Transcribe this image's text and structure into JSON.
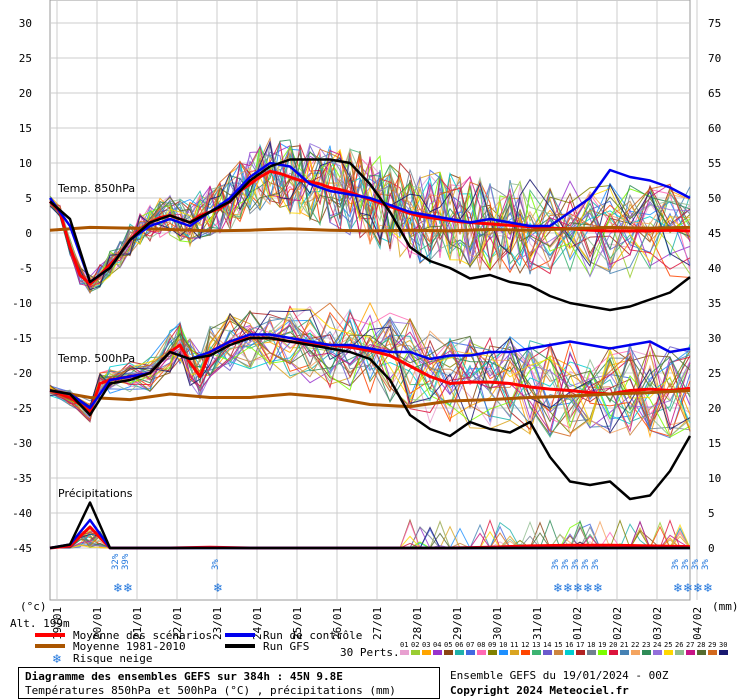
{
  "chart_data": {
    "type": "line",
    "x": [
      "19/01",
      "20/01",
      "21/01",
      "22/01",
      "23/01",
      "24/01",
      "25/01",
      "26/01",
      "27/01",
      "28/01",
      "29/01",
      "30/01",
      "31/01",
      "01/02",
      "02/02",
      "03/02",
      "04/02"
    ],
    "x_days": [
      0,
      1,
      2,
      3,
      4,
      5,
      6,
      7,
      8,
      9,
      10,
      11,
      12,
      13,
      14,
      15,
      16
    ],
    "y_left_ticks": [
      30,
      25,
      20,
      15,
      10,
      5,
      0,
      -5,
      -10,
      -15,
      -20,
      -25,
      -30,
      -35,
      -40,
      -45
    ],
    "y_right_ticks": [
      75,
      70,
      65,
      60,
      55,
      50,
      45,
      40,
      35,
      30,
      25,
      20,
      15,
      10,
      5,
      0
    ],
    "ylabel_left": "(°c)",
    "ylabel_right": "(mm)",
    "panel_labels": [
      "Temp. 850hPa",
      "Temp. 500hPa",
      "Précipitations"
    ],
    "series": [
      {
        "name": "Moyenne des scénarios",
        "color": "#ff0000",
        "panel": "t850",
        "x": [
          0,
          0.25,
          0.5,
          0.75,
          1,
          1.25,
          1.5,
          1.75,
          2,
          2.25,
          2.5,
          2.75,
          3,
          3.25,
          3.5,
          3.75,
          4,
          4.25,
          4.5,
          4.75,
          5,
          5.25,
          5.5,
          5.75,
          6,
          6.25,
          6.5,
          6.75,
          7,
          7.25,
          7.5,
          7.75,
          8,
          8.25,
          8.5,
          8.75,
          9,
          9.25,
          9.5,
          9.75,
          10,
          10.25,
          10.5,
          10.75,
          11,
          11.25,
          11.5,
          11.75,
          12,
          12.5,
          13,
          13.5,
          14,
          14.5,
          15,
          15.5,
          16
        ],
        "y": [
          4.5,
          3,
          -2,
          -6,
          -7.3,
          -6,
          -4.5,
          -3,
          -1,
          0.5,
          1.5,
          2.2,
          2.5,
          2,
          1.5,
          2.5,
          3,
          3.5,
          4.5,
          6,
          7,
          8,
          8.8,
          8.5,
          8,
          7.5,
          7.3,
          7,
          6.5,
          6.2,
          5.8,
          5.3,
          4.8,
          4.3,
          3.8,
          3.3,
          2.8,
          2.4,
          2.2,
          2,
          1.8,
          1.6,
          1.5,
          1.4,
          1.3,
          1.2,
          1.1,
          1,
          0.9,
          0.7,
          0.6,
          0.4,
          0.3,
          0.3,
          0.3,
          0.4,
          0.3
        ]
      },
      {
        "name": "Moyenne 1981-2010",
        "color": "#aa5500",
        "panel": "t850",
        "x": [
          0,
          1,
          2,
          3,
          4,
          5,
          6,
          7,
          8,
          9,
          10,
          11,
          12,
          13,
          14,
          15,
          16
        ],
        "y": [
          0.4,
          0.8,
          0.7,
          0.5,
          0.3,
          0.4,
          0.6,
          0.4,
          0.3,
          0.4,
          0.3,
          0.5,
          0.4,
          0.6,
          0.8,
          0.7,
          0.8
        ]
      },
      {
        "name": "Run de contrôle",
        "color": "#0000ee",
        "panel": "t850",
        "x": [
          0,
          0.5,
          1,
          1.5,
          2,
          2.5,
          3,
          3.5,
          4,
          4.5,
          5,
          5.5,
          6,
          6.5,
          7,
          7.5,
          8,
          8.5,
          9,
          9.5,
          10,
          10.5,
          11,
          11.5,
          12,
          12.5,
          13,
          13.5,
          14,
          14.5,
          15,
          15.5,
          16
        ],
        "y": [
          5,
          1,
          -7,
          -5,
          -1,
          1,
          2,
          1,
          3,
          5,
          8,
          10,
          9.5,
          7,
          6,
          5.5,
          5,
          4,
          3,
          2.5,
          2,
          1.5,
          2,
          1.5,
          1,
          1,
          3,
          5,
          9,
          8,
          7.5,
          6.5,
          5
        ]
      },
      {
        "name": "Run GFS",
        "color": "#000000",
        "panel": "t850",
        "x": [
          0,
          0.5,
          1,
          1.5,
          2,
          2.5,
          3,
          3.5,
          4,
          4.5,
          5,
          5.5,
          6,
          6.5,
          7,
          7.5,
          8,
          8.5,
          9,
          9.5,
          10,
          10.5,
          11,
          11.5,
          12,
          12.5,
          13,
          13.5,
          14,
          14.5,
          15,
          15.5,
          16
        ],
        "y": [
          4.5,
          2,
          -7,
          -5,
          -1,
          1.5,
          2.5,
          1.5,
          3,
          4.5,
          7.5,
          9.5,
          10.5,
          10.5,
          10.5,
          10,
          7,
          3,
          -2,
          -4,
          -5,
          -6.5,
          -6,
          -7,
          -7.5,
          -9,
          -10,
          -10.5,
          -11,
          -10.5,
          -9.5,
          -8.5,
          -6.3
        ]
      },
      {
        "name": "Moyenne des scénarios",
        "color": "#ff0000",
        "panel": "t500",
        "x": [
          0,
          0.5,
          1,
          1.25,
          1.5,
          2,
          2.5,
          3,
          3.25,
          3.5,
          3.75,
          4,
          4.5,
          5,
          5.5,
          6,
          6.5,
          7,
          7.5,
          8,
          8.5,
          9,
          9.5,
          10,
          10.5,
          11,
          11.5,
          12,
          12.5,
          13,
          13.5,
          14,
          14.5,
          15,
          15.5,
          16
        ],
        "y": [
          -22.5,
          -23.5,
          -25.5,
          -21.5,
          -21,
          -20.5,
          -20,
          -17,
          -16,
          -18.5,
          -20.5,
          -17,
          -15.5,
          -15,
          -15,
          -15.5,
          -15.8,
          -16,
          -16.3,
          -16.8,
          -17.5,
          -19,
          -20.5,
          -21.5,
          -21.3,
          -21.3,
          -21.5,
          -22,
          -22.3,
          -22.5,
          -22.8,
          -23,
          -22.5,
          -22.3,
          -22.5,
          -22.2
        ]
      },
      {
        "name": "Moyenne 1981-2010",
        "color": "#aa5500",
        "panel": "t500",
        "x": [
          0,
          1,
          2,
          3,
          4,
          5,
          6,
          7,
          8,
          9,
          10,
          11,
          12,
          13,
          14,
          15,
          16
        ],
        "y": [
          -22.5,
          -23.5,
          -23.8,
          -23,
          -23.5,
          -23.5,
          -23,
          -23.5,
          -24.5,
          -24.8,
          -24,
          -23.8,
          -23.5,
          -23.3,
          -23,
          -22.8,
          -22.5
        ]
      },
      {
        "name": "Run de contrôle",
        "color": "#0000ee",
        "panel": "t500",
        "x": [
          0,
          0.5,
          1,
          1.5,
          2,
          2.5,
          3,
          3.5,
          4,
          4.5,
          5,
          5.5,
          6,
          6.5,
          7,
          7.5,
          8,
          8.5,
          9,
          9.5,
          10,
          10.5,
          11,
          11.5,
          12,
          12.5,
          13,
          13.5,
          14,
          14.5,
          15,
          15.5,
          16
        ],
        "y": [
          -22.5,
          -23,
          -25,
          -21,
          -20.5,
          -20,
          -17,
          -18,
          -17,
          -15.5,
          -14.5,
          -14.5,
          -15,
          -15.5,
          -16,
          -16,
          -16.5,
          -17,
          -17,
          -18,
          -17.5,
          -17.5,
          -17,
          -17,
          -16.5,
          -16,
          -15.5,
          -16,
          -16.5,
          -16,
          -15.5,
          -17,
          -16.5
        ]
      },
      {
        "name": "Run GFS",
        "color": "#000000",
        "panel": "t500",
        "x": [
          0,
          0.5,
          1,
          1.5,
          2,
          2.5,
          3,
          3.5,
          4,
          4.5,
          5,
          5.5,
          6,
          6.5,
          7,
          7.5,
          8,
          8.5,
          9,
          9.5,
          10,
          10.5,
          11,
          11.5,
          12,
          12.5,
          13,
          13.5,
          14,
          14.5,
          15,
          15.5,
          16
        ],
        "y": [
          -22.5,
          -23,
          -26,
          -21.5,
          -21,
          -20,
          -17,
          -18,
          -17.5,
          -16,
          -15,
          -15,
          -15.5,
          -16,
          -16.5,
          -17,
          -18,
          -21,
          -26,
          -28,
          -29,
          -27,
          -28,
          -28.5,
          -27,
          -32,
          -35.5,
          -36,
          -35.5,
          -38,
          -37.5,
          -34,
          -29
        ]
      },
      {
        "name": "Moyenne des scénarios",
        "color": "#ff0000",
        "panel": "precip",
        "x": [
          0,
          0.5,
          1,
          1.5,
          2,
          3,
          4,
          5,
          6,
          7,
          8,
          9,
          10,
          11,
          12,
          13,
          14,
          15,
          16
        ],
        "y": [
          0,
          0.3,
          3,
          0,
          0,
          0,
          0.1,
          0,
          0,
          0,
          0,
          0,
          0,
          0.1,
          0.3,
          0.4,
          0.4,
          0.3,
          0.2
        ]
      },
      {
        "name": "Run de contrôle",
        "color": "#0000ee",
        "panel": "precip",
        "x": [
          0,
          0.5,
          1,
          1.5,
          2,
          3,
          4,
          5,
          6,
          7,
          8,
          9,
          10,
          11,
          12,
          13,
          14,
          15,
          16
        ],
        "y": [
          0,
          0.5,
          4,
          0,
          0,
          0,
          0,
          0,
          0,
          0,
          0,
          0,
          0,
          0,
          0,
          0,
          0,
          0,
          0
        ]
      },
      {
        "name": "Run GFS",
        "color": "#000000",
        "panel": "precip",
        "x": [
          0,
          0.5,
          1,
          1.5,
          2,
          3,
          4,
          5,
          6,
          7,
          8,
          9,
          10,
          11,
          12,
          13,
          14,
          15,
          16
        ],
        "y": [
          0,
          0.5,
          6.5,
          0,
          0,
          0,
          0,
          0,
          0,
          0,
          0,
          0,
          0,
          0,
          0,
          0,
          0,
          0,
          0
        ]
      }
    ],
    "snow_risk": [
      {
        "day": 1.0,
        "pct": "32%"
      },
      {
        "day": 1.25,
        "pct": "39%"
      },
      {
        "day": 3.5,
        "pct": "3%"
      },
      {
        "day": 12.0,
        "pct": "3%"
      },
      {
        "day": 12.25,
        "pct": "3%"
      },
      {
        "day": 12.5,
        "pct": "3%"
      },
      {
        "day": 12.75,
        "pct": "3%"
      },
      {
        "day": 13.0,
        "pct": "3%"
      },
      {
        "day": 15.0,
        "pct": "3%"
      },
      {
        "day": 15.25,
        "pct": "3%"
      },
      {
        "day": 15.5,
        "pct": "3%"
      },
      {
        "day": 15.75,
        "pct": "3%"
      }
    ],
    "altitude": "Alt. 199m",
    "legend": {
      "mean": "Moyenne des scénarios",
      "climo": "Moyenne 1981-2010",
      "snow": "Risque neige",
      "control": "Run de contrôle",
      "gfs": "Run GFS",
      "perts_label": "30 Perts.",
      "perts": [
        "01",
        "02",
        "03",
        "04",
        "05",
        "06",
        "07",
        "08",
        "09",
        "10",
        "11",
        "12",
        "13",
        "14",
        "15",
        "16",
        "17",
        "18",
        "19",
        "20",
        "21",
        "22",
        "23",
        "24",
        "25",
        "26",
        "27",
        "28",
        "29",
        "30"
      ],
      "pert_colors": [
        "#e8a0d0",
        "#9acd32",
        "#ffa500",
        "#9932cc",
        "#8b4513",
        "#20b2aa",
        "#4169e1",
        "#ff69b4",
        "#808000",
        "#1e90ff",
        "#daa520",
        "#ff4500",
        "#3cb371",
        "#6a5acd",
        "#cd853f",
        "#00ced1",
        "#b22222",
        "#708090",
        "#7cfc00",
        "#dc143c",
        "#4682b4",
        "#f4a460",
        "#2e8b57",
        "#9370db",
        "#ffd700",
        "#8fbc8f",
        "#c71585",
        "#556b2f",
        "#d2691e",
        "#191970"
      ]
    },
    "grid": true
  },
  "footer": {
    "title": "Diagramme des ensembles GEFS sur 384h : 45N 9.8E",
    "subtitle": "Températures 850hPa et 500hPa (°C) , précipitations (mm)",
    "ensemble": "Ensemble GEFS du 19/01/2024 - 00Z",
    "copyright": "Copyright 2024 Meteociel.fr"
  }
}
